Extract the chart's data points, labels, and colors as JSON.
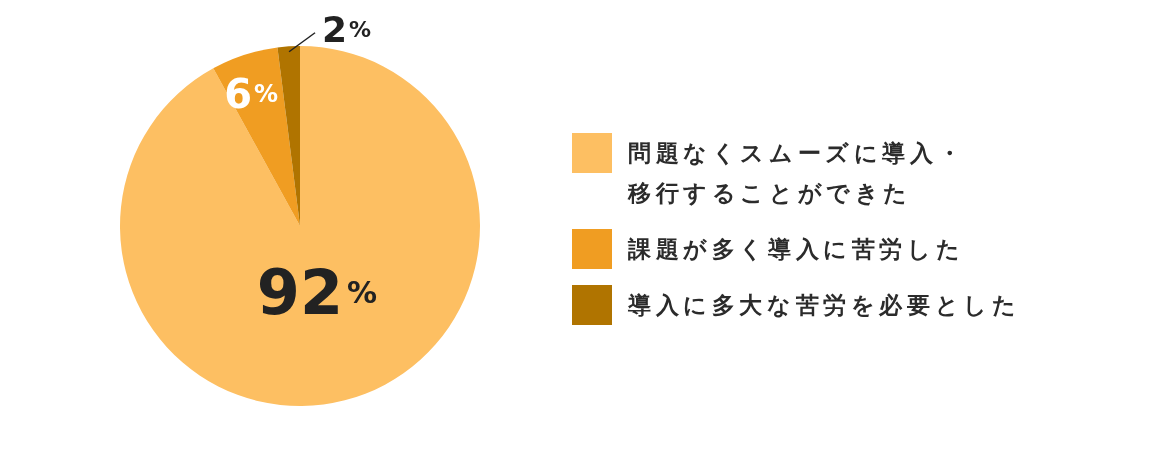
{
  "chart_data": {
    "type": "pie",
    "categories": [
      "問題なくスムーズに導入・移行することができた",
      "課題が多く導入に苦労した",
      "導入に多大な苦労を必要とした"
    ],
    "values": [
      92,
      6,
      2
    ],
    "colors": [
      "#fdbf62",
      "#f09d22",
      "#b07400"
    ],
    "value_labels": [
      "92%",
      "6%",
      "2%"
    ],
    "legend": "right"
  }
}
